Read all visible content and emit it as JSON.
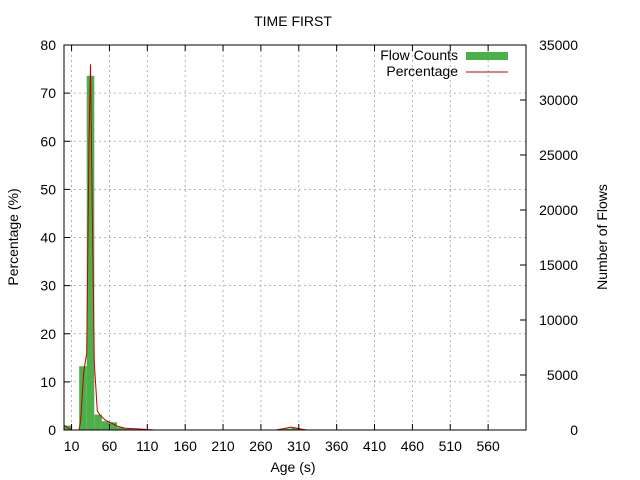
{
  "chart_data": {
    "type": "bar",
    "title": "TIME FIRST",
    "xlabel": "Age (s)",
    "ylabel": "Percentage (%)",
    "y2label": "Number of Flows",
    "xlim": [
      0,
      610
    ],
    "ylim": [
      0,
      80
    ],
    "y2lim": [
      0,
      35000
    ],
    "x_ticks": [
      10,
      60,
      110,
      160,
      210,
      260,
      310,
      360,
      410,
      460,
      510,
      560
    ],
    "y_ticks": [
      0,
      10,
      20,
      30,
      40,
      50,
      60,
      70,
      80
    ],
    "y2_ticks": [
      0,
      5000,
      10000,
      15000,
      20000,
      25000,
      30000,
      35000
    ],
    "grid": true,
    "legend_position": "top-right",
    "series": [
      {
        "name": "Flow Counts",
        "axis": "y2",
        "color": "#4daf4a",
        "bin_width": 10,
        "bins": [
          {
            "x": 0,
            "value": 400
          },
          {
            "x": 10,
            "value": 0
          },
          {
            "x": 20,
            "value": 5800
          },
          {
            "x": 30,
            "value": 32200
          },
          {
            "x": 40,
            "value": 1400
          },
          {
            "x": 50,
            "value": 800
          },
          {
            "x": 60,
            "value": 700
          },
          {
            "x": 70,
            "value": 250
          },
          {
            "x": 80,
            "value": 120
          },
          {
            "x": 90,
            "value": 80
          },
          {
            "x": 100,
            "value": 40
          },
          {
            "x": 290,
            "value": 120
          },
          {
            "x": 300,
            "value": 200
          },
          {
            "x": 310,
            "value": 60
          }
        ]
      },
      {
        "name": "Percentage",
        "axis": "y",
        "color": "#c00000",
        "points": [
          [
            0,
            1.0
          ],
          [
            10,
            0
          ],
          [
            20,
            0
          ],
          [
            22,
            2
          ],
          [
            26,
            12
          ],
          [
            30,
            16
          ],
          [
            33,
            60
          ],
          [
            35,
            76
          ],
          [
            37,
            50
          ],
          [
            40,
            14
          ],
          [
            44,
            4
          ],
          [
            48,
            3
          ],
          [
            55,
            2
          ],
          [
            62,
            1.5
          ],
          [
            70,
            0.8
          ],
          [
            80,
            0.4
          ],
          [
            90,
            0.3
          ],
          [
            100,
            0.2
          ],
          [
            110,
            0.1
          ],
          [
            120,
            0
          ],
          [
            280,
            0
          ],
          [
            290,
            0.3
          ],
          [
            300,
            0.6
          ],
          [
            310,
            0.3
          ],
          [
            320,
            0
          ],
          [
            600,
            0
          ]
        ]
      }
    ]
  }
}
